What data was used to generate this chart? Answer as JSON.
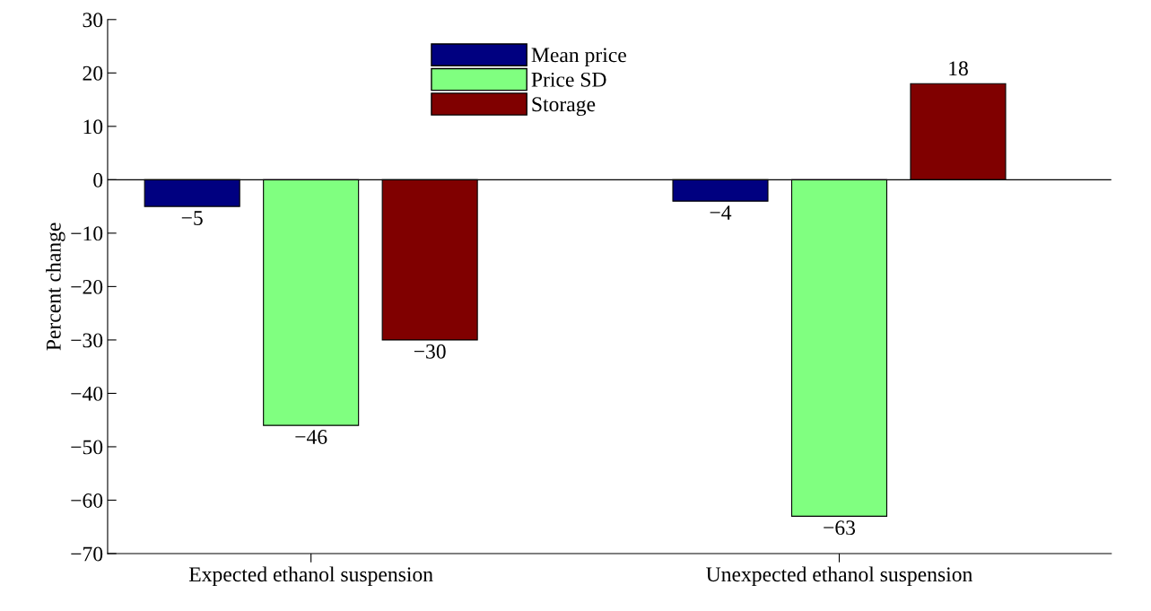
{
  "chart_data": {
    "type": "bar",
    "ylabel": "Percent change",
    "categories": [
      "Expected ethanol suspension",
      "Unexpected ethanol suspension"
    ],
    "series": [
      {
        "name": "Mean price",
        "color": "#000080",
        "values": [
          -5,
          -4
        ]
      },
      {
        "name": "Price SD",
        "color": "#80ff80",
        "values": [
          -46,
          -63
        ]
      },
      {
        "name": "Storage",
        "color": "#800000",
        "values": [
          -30,
          18
        ]
      }
    ],
    "ylim": [
      -70,
      30
    ],
    "yticks": [
      -70,
      -60,
      -50,
      -40,
      -30,
      -20,
      -10,
      0,
      10,
      20,
      30
    ],
    "ref_lines": [
      {
        "axis": "y",
        "value": 0,
        "color": "#000000"
      }
    ],
    "data_labels": true,
    "legend": "top"
  }
}
